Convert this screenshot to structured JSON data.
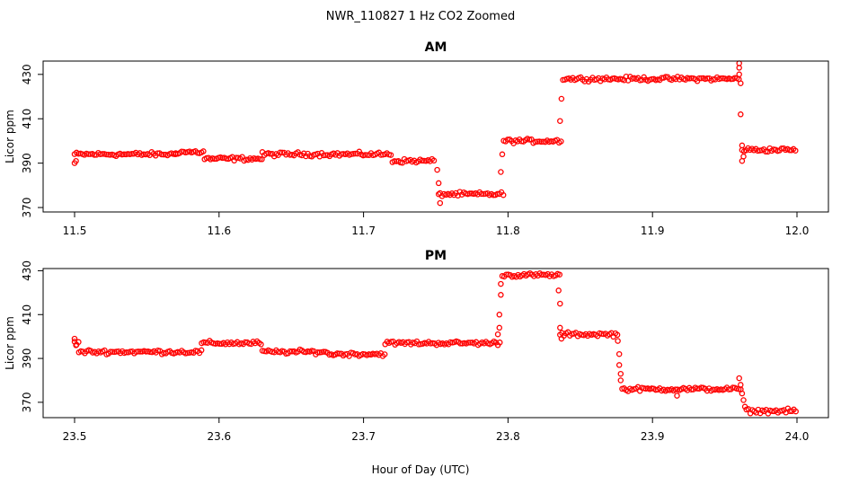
{
  "figure": {
    "title": "NWR_110827  1 Hz CO2 Zoomed",
    "xlabel": "Hour of Day (UTC)",
    "colors": {
      "points": "#ff0000",
      "axes": "#000000",
      "background": "#ffffff"
    }
  },
  "chart_data": [
    {
      "type": "scatter",
      "title": "AM",
      "xlabel": "",
      "ylabel": "Licor ppm",
      "xlim": [
        11.5,
        12.0
      ],
      "ylim": [
        368,
        436
      ],
      "xticks": [
        "11.5",
        "11.6",
        "11.7",
        "11.8",
        "11.9",
        "12.0"
      ],
      "yticks": [
        "370",
        "390",
        "410",
        "430"
      ],
      "grid": false,
      "point_style": "open-circle",
      "sampling": "1 Hz",
      "segments": [
        {
          "x_start": 11.5,
          "x_end": 11.57,
          "y": 394
        },
        {
          "x_start": 11.57,
          "x_end": 11.59,
          "y": 395
        },
        {
          "x_start": 11.59,
          "x_end": 11.63,
          "y": 392
        },
        {
          "x_start": 11.63,
          "x_end": 11.72,
          "y": 394
        },
        {
          "x_start": 11.72,
          "x_end": 11.75,
          "y": 391
        },
        {
          "x_start": 11.753,
          "x_end": 11.797,
          "y": 376
        },
        {
          "x_start": 11.797,
          "x_end": 11.838,
          "y": 400
        },
        {
          "x_start": 11.838,
          "x_end": 11.96,
          "y": 428
        },
        {
          "x_start": 11.962,
          "x_end": 12.0,
          "y": 396
        }
      ],
      "transition_points": [
        {
          "x": 11.5,
          "y": 390
        },
        {
          "x": 11.501,
          "y": 391
        },
        {
          "x": 11.751,
          "y": 387
        },
        {
          "x": 11.752,
          "y": 381
        },
        {
          "x": 11.752,
          "y": 376
        },
        {
          "x": 11.753,
          "y": 372
        },
        {
          "x": 11.795,
          "y": 386
        },
        {
          "x": 11.796,
          "y": 394
        },
        {
          "x": 11.836,
          "y": 409
        },
        {
          "x": 11.837,
          "y": 419
        },
        {
          "x": 11.96,
          "y": 430
        },
        {
          "x": 11.96,
          "y": 433
        },
        {
          "x": 11.96,
          "y": 435
        },
        {
          "x": 11.961,
          "y": 426
        },
        {
          "x": 11.961,
          "y": 412
        },
        {
          "x": 11.962,
          "y": 398
        },
        {
          "x": 11.962,
          "y": 391
        },
        {
          "x": 11.963,
          "y": 393
        }
      ]
    },
    {
      "type": "scatter",
      "title": "PM",
      "xlabel": "Hour of Day (UTC)",
      "ylabel": "Licor ppm",
      "xlim": [
        23.5,
        24.0
      ],
      "ylim": [
        363,
        431
      ],
      "xticks": [
        "23.5",
        "23.6",
        "23.7",
        "23.8",
        "23.9",
        "24.0"
      ],
      "yticks": [
        "370",
        "390",
        "410",
        "430"
      ],
      "grid": false,
      "point_style": "open-circle",
      "sampling": "1 Hz",
      "segments": [
        {
          "x_start": 23.5,
          "x_end": 23.503,
          "y": 397
        },
        {
          "x_start": 23.503,
          "x_end": 23.588,
          "y": 393
        },
        {
          "x_start": 23.588,
          "x_end": 23.63,
          "y": 397
        },
        {
          "x_start": 23.63,
          "x_end": 23.675,
          "y": 393
        },
        {
          "x_start": 23.675,
          "x_end": 23.715,
          "y": 392
        },
        {
          "x_start": 23.715,
          "x_end": 23.795,
          "y": 397
        },
        {
          "x_start": 23.796,
          "x_end": 23.836,
          "y": 428
        },
        {
          "x_start": 23.836,
          "x_end": 23.877,
          "y": 401
        },
        {
          "x_start": 23.879,
          "x_end": 23.962,
          "y": 376
        },
        {
          "x_start": 23.965,
          "x_end": 24.0,
          "y": 366
        }
      ],
      "transition_points": [
        {
          "x": 23.5,
          "y": 399
        },
        {
          "x": 23.501,
          "y": 396
        },
        {
          "x": 23.793,
          "y": 401
        },
        {
          "x": 23.794,
          "y": 404
        },
        {
          "x": 23.794,
          "y": 410
        },
        {
          "x": 23.795,
          "y": 419
        },
        {
          "x": 23.795,
          "y": 424
        },
        {
          "x": 23.835,
          "y": 421
        },
        {
          "x": 23.836,
          "y": 415
        },
        {
          "x": 23.836,
          "y": 404
        },
        {
          "x": 23.837,
          "y": 399
        },
        {
          "x": 23.876,
          "y": 398
        },
        {
          "x": 23.877,
          "y": 392
        },
        {
          "x": 23.877,
          "y": 387
        },
        {
          "x": 23.878,
          "y": 383
        },
        {
          "x": 23.878,
          "y": 380
        },
        {
          "x": 23.917,
          "y": 373
        },
        {
          "x": 23.96,
          "y": 381
        },
        {
          "x": 23.961,
          "y": 378
        },
        {
          "x": 23.962,
          "y": 374
        },
        {
          "x": 23.963,
          "y": 371
        },
        {
          "x": 23.964,
          "y": 368
        }
      ]
    }
  ]
}
